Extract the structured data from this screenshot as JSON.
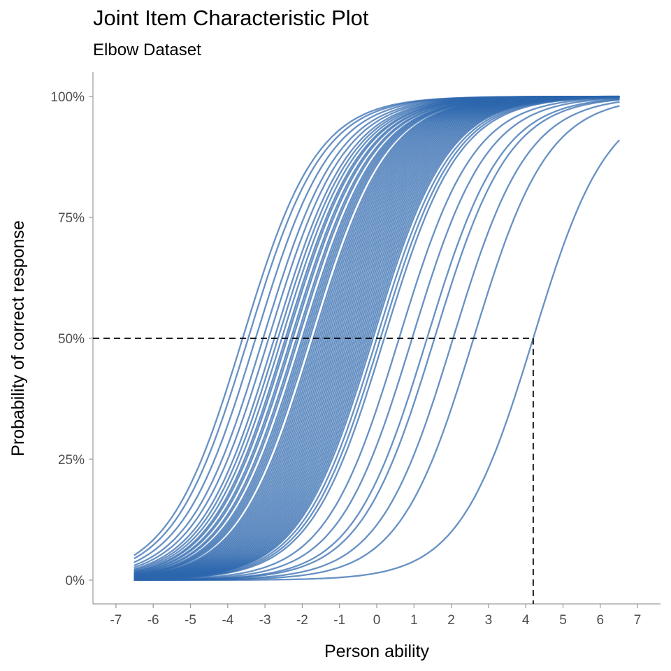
{
  "chart_data": {
    "type": "line",
    "title": "Joint Item Characteristic Plot",
    "subtitle": "Elbow Dataset",
    "xlabel": "Person ability",
    "ylabel": "Probability of correct response",
    "xlim": [
      -7.7,
      7.7
    ],
    "ylim": [
      -0.05,
      1.05
    ],
    "x_ticks": [
      "-7",
      "-6",
      "-5",
      "-4",
      "-3",
      "-2",
      "-1",
      "0",
      "1",
      "2",
      "3",
      "4",
      "5",
      "6",
      "7"
    ],
    "y_ticks": [
      "0%",
      "25%",
      "50%",
      "75%",
      "100%"
    ],
    "curve_x_range": [
      -6.5,
      6.5
    ],
    "curve_model": "rasch_logistic",
    "item_difficulties": [
      -3.6,
      -3.45,
      -3.25,
      -3.05,
      -2.9,
      -2.75,
      -2.65,
      -2.55,
      -2.45,
      -2.4,
      -2.3,
      -2.25,
      -2.15,
      -2.1,
      -2.0,
      -1.95,
      -1.9,
      -1.85,
      -1.8,
      -1.7,
      -1.65,
      -1.6,
      -1.55,
      -1.5,
      -1.45,
      -1.4,
      -1.35,
      -1.3,
      -1.25,
      -1.2,
      -1.15,
      -1.1,
      -1.05,
      -1.0,
      -0.95,
      -0.9,
      -0.85,
      -0.8,
      -0.75,
      -0.7,
      -0.65,
      -0.6,
      -0.55,
      -0.5,
      -0.45,
      -0.4,
      -0.35,
      -0.3,
      -0.25,
      -0.2,
      -0.15,
      -0.1,
      0.0,
      0.1,
      0.2,
      0.6,
      0.95,
      1.35,
      1.55,
      2.05,
      2.6,
      4.2
    ],
    "reference_lines": {
      "probability": 0.5,
      "ability": 4.2
    },
    "series_color": "#2c67ad",
    "grid": false,
    "legend": "none"
  }
}
